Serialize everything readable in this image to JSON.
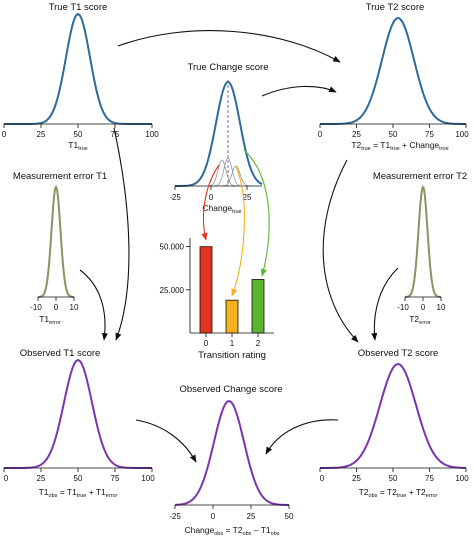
{
  "panels": {
    "true_t1": {
      "title": "True T1 score",
      "ticks": [
        "0",
        "25",
        "50",
        "75",
        "100"
      ],
      "xlabel_main": "T1",
      "xlabel_sub": "true",
      "color": "#2f6a9c"
    },
    "true_t2": {
      "title": "True T2 score",
      "ticks": [
        "0",
        "25",
        "50",
        "75",
        "100"
      ],
      "color": "#2f6a9c",
      "eq": {
        "p1": "T2",
        "s1": "true",
        "p2": " = T1",
        "s2": "true",
        "p3": " + Change",
        "s3": "true"
      }
    },
    "true_change": {
      "title": "True Change score",
      "ticks": [
        "-25",
        "0",
        "25"
      ],
      "xlabel_main": "Change",
      "xlabel_sub": "true",
      "color": "#2f6a9c"
    },
    "error_t1": {
      "title": "Measurement error T1",
      "ticks": [
        "-10",
        "0",
        "10"
      ],
      "xlabel_main": "T1",
      "xlabel_sub": "error",
      "color": "#8a9460"
    },
    "error_t2": {
      "title": "Measurement error T2",
      "ticks": [
        "-10",
        "0",
        "10"
      ],
      "xlabel_main": "T2",
      "xlabel_sub": "error",
      "color": "#8a9460"
    },
    "obs_t1": {
      "title": "Observed T1 score",
      "ticks": [
        "0",
        "25",
        "50",
        "75",
        "100"
      ],
      "color": "#7c35b0",
      "eq": {
        "p1": "T1",
        "s1": "obs",
        "p2": " = T1",
        "s2": "true",
        "p3": " + T1",
        "s3": "error"
      }
    },
    "obs_t2": {
      "title": "Observed T2 score",
      "ticks": [
        "0",
        "25",
        "50",
        "75",
        "100"
      ],
      "color": "#7c35b0",
      "eq": {
        "p1": "T2",
        "s1": "obs",
        "p2": " = T2",
        "s2": "true",
        "p3": " + T2",
        "s3": "error"
      }
    },
    "obs_change": {
      "title": "Observed Change score",
      "ticks": [
        "-25",
        "0",
        "25",
        "50"
      ],
      "color": "#7c35b0",
      "eq": {
        "p1": "Change",
        "s1": "obs",
        "p2": " = T2",
        "s2": "obs",
        "p3": " – T1",
        "s3": "obs"
      }
    }
  },
  "chart_data": {
    "type": "bar",
    "categories": [
      "0",
      "1",
      "2"
    ],
    "values": [
      50000,
      19000,
      31000
    ],
    "colors": [
      "#e0341f",
      "#f6b11c",
      "#5ab52e"
    ],
    "xlabel": "Transition rating",
    "ylabel": "",
    "ylim": [
      0,
      55000
    ],
    "y_ticks": [
      "25.000",
      "50.000"
    ],
    "y_tick_values": [
      25000,
      50000
    ],
    "grid": false
  }
}
